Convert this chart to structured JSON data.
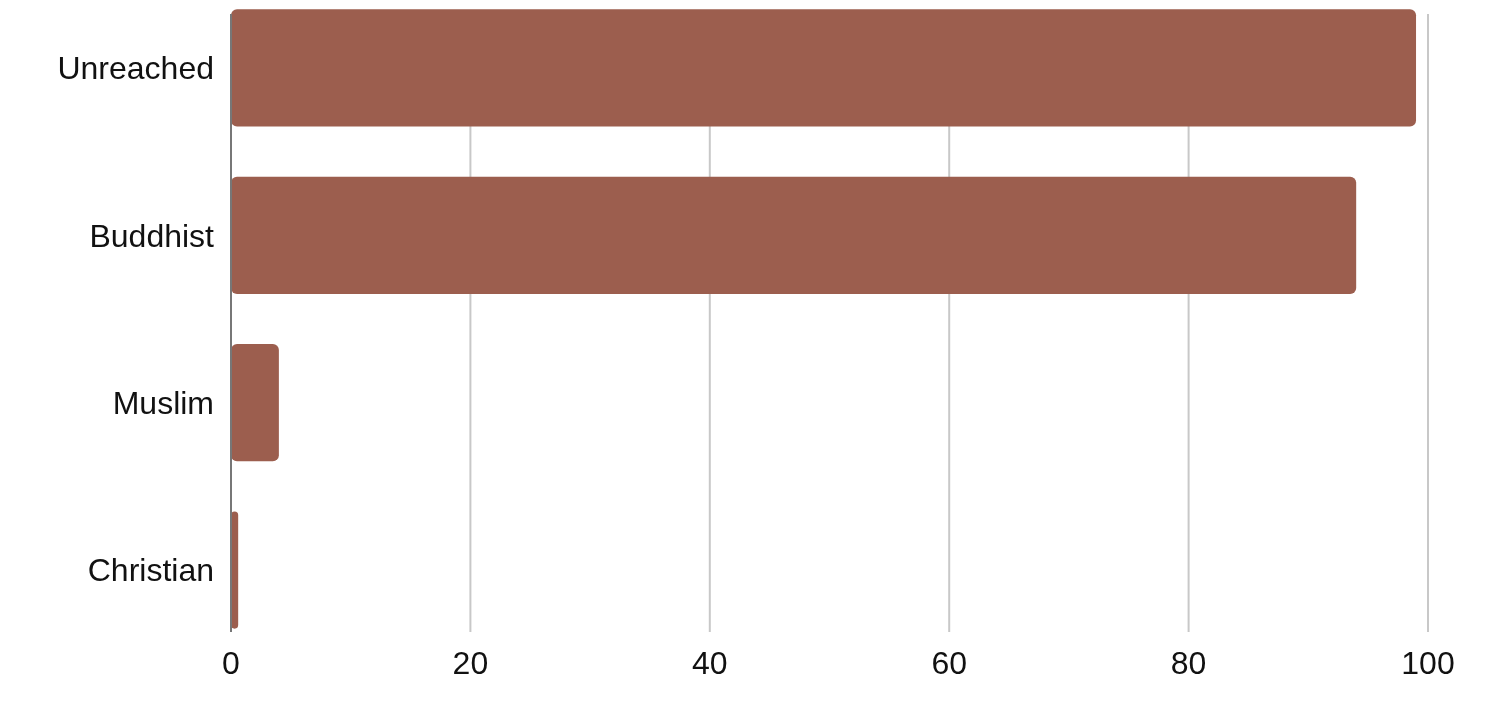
{
  "chart_data": {
    "type": "bar",
    "orientation": "horizontal",
    "categories": [
      "Unreached",
      "Buddhist",
      "Muslim",
      "Christian"
    ],
    "values": [
      99,
      94,
      4,
      0.6
    ],
    "color": "#9c5e4e",
    "xlim": [
      0,
      100
    ],
    "xticks": [
      0,
      20,
      40,
      60,
      80,
      100
    ],
    "grid": "x"
  }
}
